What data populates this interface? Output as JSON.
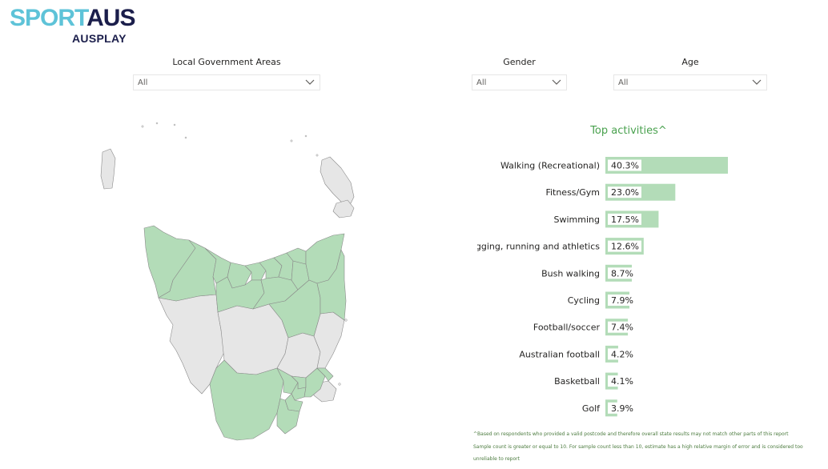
{
  "logo": {
    "line1_a": "SPORT",
    "line1_b": "AUS",
    "line2": "AUSPLAY"
  },
  "filters": {
    "lga": {
      "label": "Local Government Areas",
      "value": "All"
    },
    "gender": {
      "label": "Gender",
      "value": "All"
    },
    "age": {
      "label": "Age",
      "value": "All"
    }
  },
  "colors": {
    "bar": "#b3dcb8",
    "map_selected": "#b3dcb8",
    "map_unselected": "#e6e6e6",
    "map_border": "#8a8a8a",
    "title_green": "#49a14e"
  },
  "chart_data": {
    "type": "bar",
    "orientation": "horizontal",
    "title": "Top activities^",
    "categories": [
      "Walking (Recreational)",
      "Fitness/Gym",
      "Swimming",
      "Jogging, running and athletics",
      "Bush walking",
      "Cycling",
      "Football/soccer",
      "Australian football",
      "Basketball",
      "Golf"
    ],
    "values": [
      40.3,
      23.0,
      17.5,
      12.6,
      8.7,
      7.9,
      7.4,
      4.2,
      4.1,
      3.9
    ],
    "labels": [
      "40.3%",
      "23.0%",
      "17.5%",
      "12.6%",
      "8.7%",
      "7.9%",
      "7.4%",
      "4.2%",
      "4.1%",
      "3.9%"
    ],
    "xlim": [
      0,
      40.3
    ]
  },
  "footnotes": {
    "line1": "^Based on respondents who provided a valid postcode and therefore overall state results may not match other parts of this report",
    "line2": "Sample count is greater or equal to 10. For sample count less than 10, estimate has a high relative margin of error and is considered too",
    "line3": "unreliable to report"
  }
}
